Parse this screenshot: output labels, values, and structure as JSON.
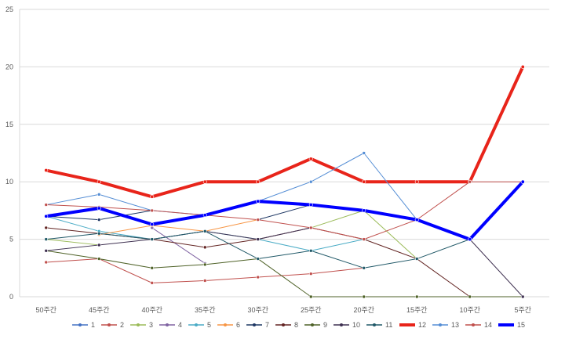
{
  "chart_data": {
    "type": "line",
    "categories": [
      "50주간",
      "45주간",
      "40주간",
      "35주간",
      "30주간",
      "25주간",
      "20주간",
      "15주간",
      "10주간",
      "5주간"
    ],
    "ylim": [
      0,
      25
    ],
    "yticks": [
      0,
      5,
      10,
      15,
      20,
      25
    ],
    "grid": "horizontal",
    "legend_position": "bottom",
    "series": [
      {
        "name": "1",
        "color": "#4472C4",
        "width": 1,
        "values": [
          null,
          null,
          null,
          null,
          null,
          null,
          null,
          null,
          null,
          null
        ]
      },
      {
        "name": "2",
        "color": "#C0504D",
        "width": 1,
        "values": [
          3,
          3.3,
          1.2,
          1.4,
          1.7,
          2,
          2.5,
          null,
          null,
          null
        ]
      },
      {
        "name": "3",
        "color": "#9BBB59",
        "width": 1,
        "values": [
          5,
          4.5,
          null,
          null,
          null,
          6,
          7.5,
          3.3,
          null,
          null
        ]
      },
      {
        "name": "4",
        "color": "#8064A2",
        "width": 1,
        "values": [
          null,
          null,
          6,
          2.9,
          null,
          null,
          null,
          null,
          null,
          null
        ]
      },
      {
        "name": "5",
        "color": "#4BACC6",
        "width": 1,
        "values": [
          7,
          5.7,
          5,
          5.7,
          5,
          4,
          5,
          null,
          null,
          null
        ]
      },
      {
        "name": "6",
        "color": "#F79646",
        "width": 1,
        "values": [
          null,
          5.4,
          6.2,
          5.7,
          6.7,
          null,
          null,
          null,
          null,
          null
        ]
      },
      {
        "name": "7",
        "color": "#1F3864",
        "width": 1,
        "values": [
          7,
          6.7,
          7.5,
          null,
          6.7,
          8,
          null,
          10,
          null,
          null
        ]
      },
      {
        "name": "8",
        "color": "#632523",
        "width": 1,
        "values": [
          6,
          5.5,
          5,
          4.3,
          5,
          6,
          5,
          3.3,
          0,
          null
        ]
      },
      {
        "name": "9",
        "color": "#4F6228",
        "width": 1,
        "values": [
          4,
          3.3,
          2.5,
          2.8,
          3.3,
          0,
          0,
          0,
          0,
          0
        ]
      },
      {
        "name": "10",
        "color": "#3F3151",
        "width": 1,
        "values": [
          4,
          4.5,
          5,
          5.7,
          5,
          6,
          null,
          null,
          5,
          0
        ]
      },
      {
        "name": "11",
        "color": "#215968",
        "width": 1,
        "values": [
          5,
          5.5,
          5,
          5.7,
          3.3,
          4,
          2.5,
          3.3,
          5,
          10
        ]
      },
      {
        "name": "12",
        "color": "#E8241A",
        "width": 4,
        "values": [
          11,
          10,
          8.7,
          10,
          10,
          12,
          10,
          10,
          10,
          20
        ]
      },
      {
        "name": "13",
        "color": "#558ED5",
        "width": 1,
        "values": [
          8,
          8.9,
          7.5,
          7.1,
          8.3,
          10,
          12.5,
          6.7,
          null,
          null
        ]
      },
      {
        "name": "14",
        "color": "#C0504D",
        "width": 1,
        "values": [
          8,
          7.8,
          7.5,
          7.1,
          6.7,
          6,
          5,
          6.7,
          10,
          10
        ]
      },
      {
        "name": "15",
        "color": "#0000FF",
        "width": 4,
        "values": [
          7,
          7.7,
          6.3,
          7.1,
          8.3,
          8,
          7.5,
          6.7,
          5,
          10
        ]
      }
    ]
  }
}
